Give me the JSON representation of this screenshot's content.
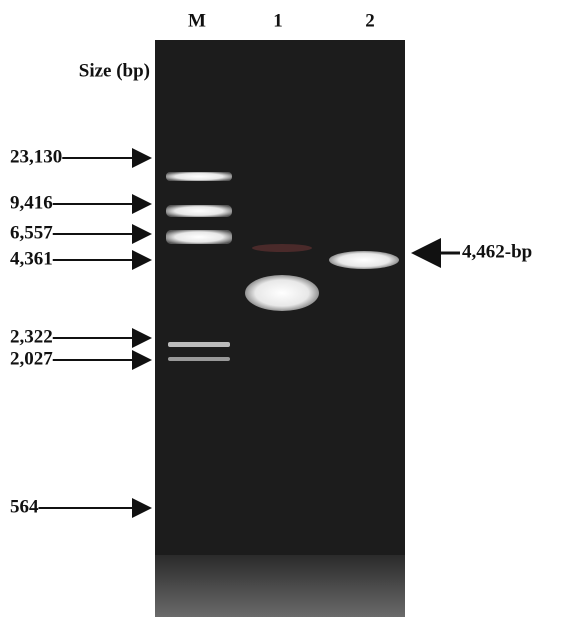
{
  "lanes": [
    "M",
    "1",
    "2"
  ],
  "size_label": "Size (bp)",
  "markers": [
    "23,130",
    "9,416",
    "6,557",
    "4,361",
    "2,322",
    "2,027",
    "564"
  ],
  "annotation": "4,462-bp"
}
